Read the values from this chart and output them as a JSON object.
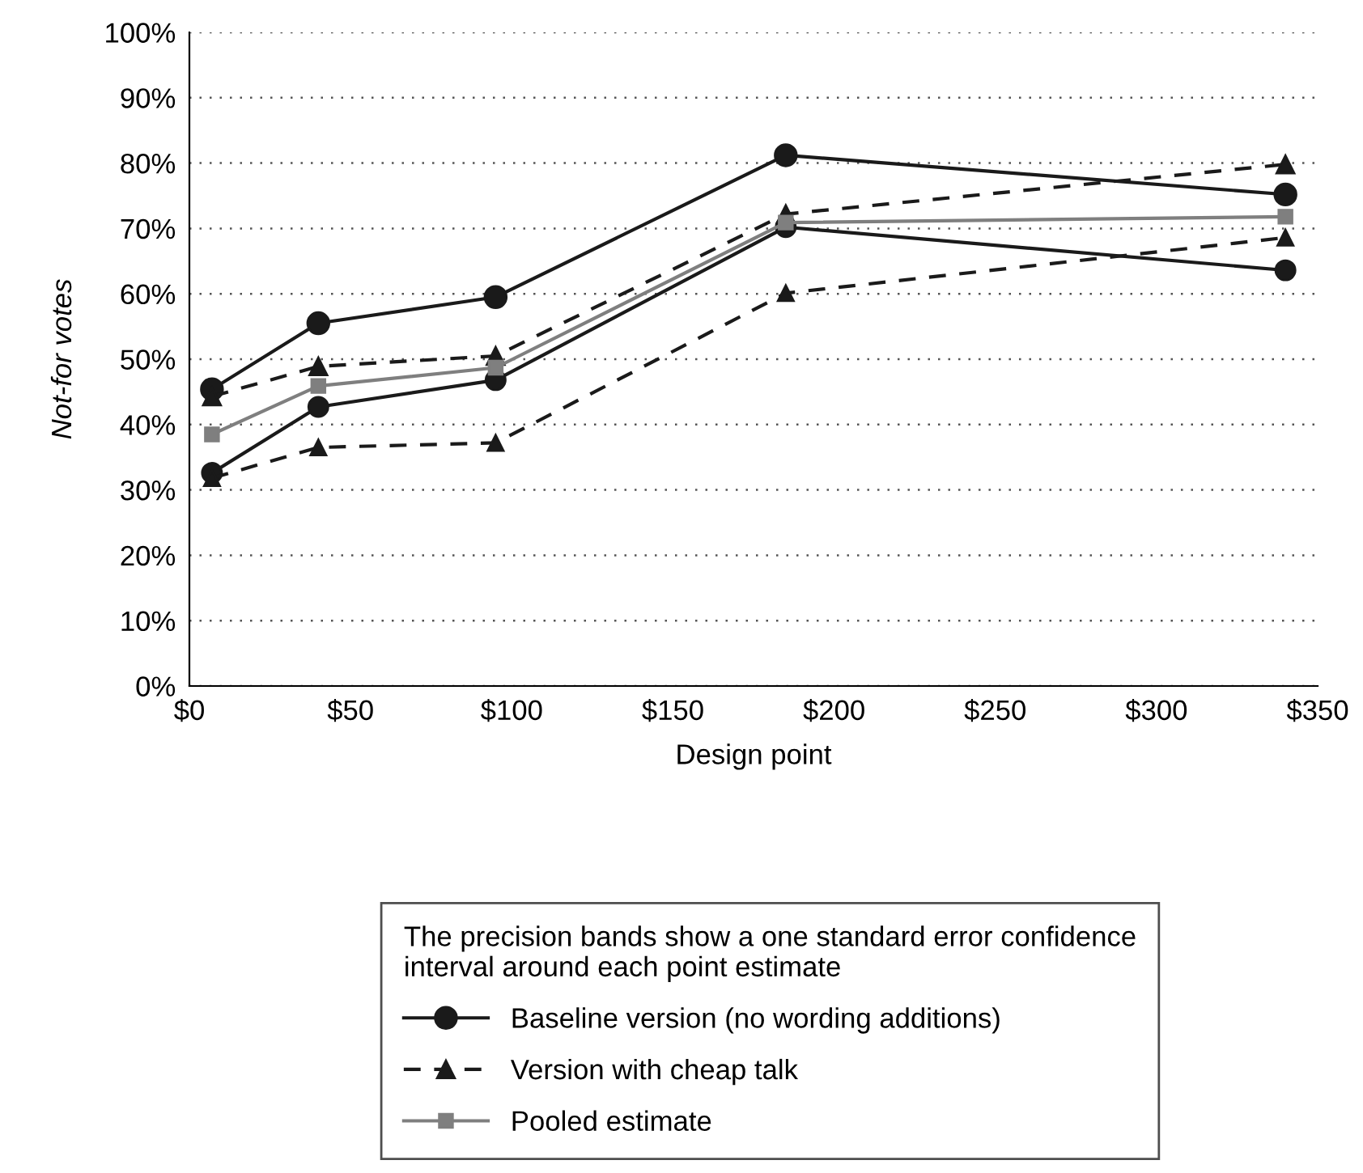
{
  "chart_data": {
    "type": "line",
    "xlabel": "Design point",
    "ylabel": "Not-for votes",
    "legend_title": "The precision bands show a one standard error confidence\ninterval around each point estimate",
    "x": [
      7,
      40,
      95,
      185,
      340
    ],
    "series": [
      {
        "name": "Baseline version (no wording additions)",
        "color": "#1a1a1a",
        "marker": "circle",
        "line_style": "solid",
        "values": [
          45.4,
          55.5,
          59.5,
          81.2,
          75.2
        ]
      },
      {
        "color": "#1a1a1a",
        "marker": "circle",
        "line_style": "solid",
        "values": [
          32.6,
          42.7,
          46.8,
          70.2,
          63.6
        ]
      },
      {
        "name": "Version with cheap talk",
        "color": "#1a1a1a",
        "marker": "triangle",
        "line_style": "dashed",
        "values": [
          44.3,
          48.9,
          50.5,
          72.2,
          79.8
        ]
      },
      {
        "color": "#1a1a1a",
        "marker": "triangle",
        "line_style": "dashed",
        "values": [
          31.8,
          36.5,
          37.2,
          60.1,
          68.6
        ]
      },
      {
        "name": "Pooled estimate",
        "color": "#7f7f7f",
        "marker": "square",
        "line_style": "solid",
        "values": [
          38.5,
          45.9,
          48.7,
          70.9,
          71.8
        ]
      }
    ],
    "xlim": [
      0,
      350
    ],
    "xticks": [
      {
        "value": 0,
        "label": "$0"
      },
      {
        "value": 50,
        "label": "$50"
      },
      {
        "value": 100,
        "label": "$100"
      },
      {
        "value": 150,
        "label": "$150"
      },
      {
        "value": 200,
        "label": "$200"
      },
      {
        "value": 250,
        "label": "$250"
      },
      {
        "value": 300,
        "label": "$300"
      },
      {
        "value": 350,
        "label": "$350"
      }
    ],
    "ylim": [
      0,
      100
    ],
    "yticks": [
      {
        "value": 0,
        "label": "0%"
      },
      {
        "value": 10,
        "label": "10%"
      },
      {
        "value": 20,
        "label": "20%"
      },
      {
        "value": 30,
        "label": "30%"
      },
      {
        "value": 40,
        "label": "40%"
      },
      {
        "value": 50,
        "label": "50%"
      },
      {
        "value": 60,
        "label": "60%"
      },
      {
        "value": 70,
        "label": "70%"
      },
      {
        "value": 80,
        "label": "80%"
      },
      {
        "value": 90,
        "label": "90%"
      },
      {
        "value": 100,
        "label": "100%"
      }
    ],
    "grid": "y",
    "legend": "bottom"
  }
}
